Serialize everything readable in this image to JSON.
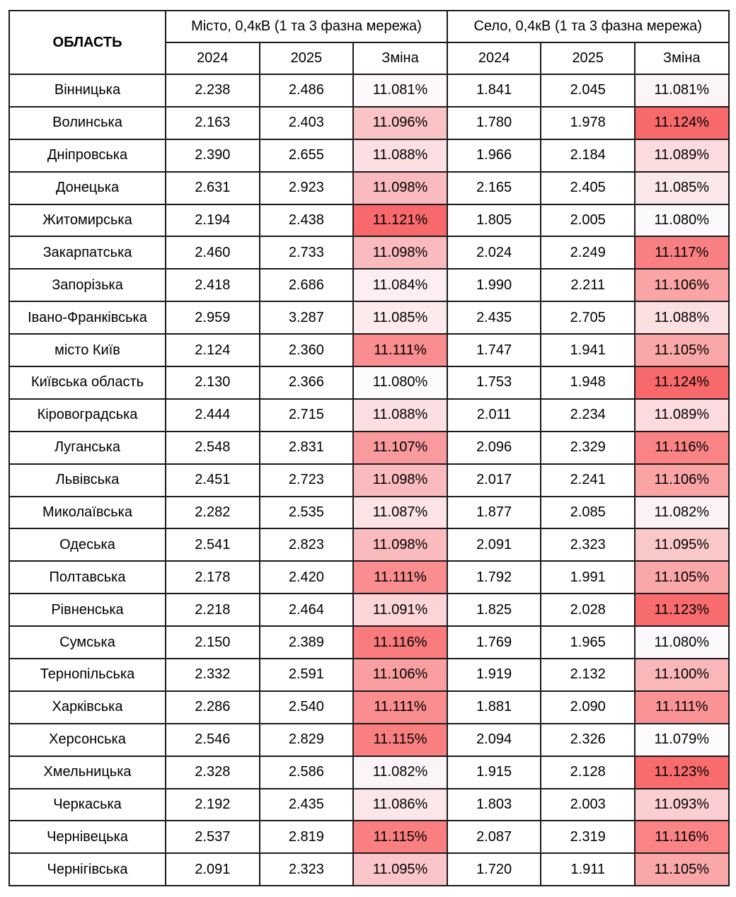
{
  "header": {
    "region": "ОБЛАСТЬ",
    "city_group": "Місто, 0,4кВ (1 та 3 фазна мережа)",
    "village_group": "Село, 0,4кВ (1 та 3 фазна мережа)",
    "col_2024": "2024",
    "col_2025": "2025",
    "col_change": "Зміна"
  },
  "colors": {
    "scale_low": "#FCFCFF",
    "scale_high": "#F8696B",
    "border": "#1a1a1a"
  },
  "rows": [
    {
      "region": "Вінницька",
      "city_2024": "2.238",
      "city_2025": "2.486",
      "city_change": "11.081%",
      "village_2024": "1.841",
      "village_2025": "2.045",
      "village_change": "11.081%"
    },
    {
      "region": "Волинська",
      "city_2024": "2.163",
      "city_2025": "2.403",
      "city_change": "11.096%",
      "village_2024": "1.780",
      "village_2025": "1.978",
      "village_change": "11.124%"
    },
    {
      "region": "Дніпровська",
      "city_2024": "2.390",
      "city_2025": "2.655",
      "city_change": "11.088%",
      "village_2024": "1.966",
      "village_2025": "2.184",
      "village_change": "11.089%"
    },
    {
      "region": "Донецька",
      "city_2024": "2.631",
      "city_2025": "2.923",
      "city_change": "11.098%",
      "village_2024": "2.165",
      "village_2025": "2.405",
      "village_change": "11.085%"
    },
    {
      "region": "Житомирська",
      "city_2024": "2.194",
      "city_2025": "2.438",
      "city_change": "11.121%",
      "village_2024": "1.805",
      "village_2025": "2.005",
      "village_change": "11.080%"
    },
    {
      "region": "Закарпатська",
      "city_2024": "2.460",
      "city_2025": "2.733",
      "city_change": "11.098%",
      "village_2024": "2.024",
      "village_2025": "2.249",
      "village_change": "11.117%"
    },
    {
      "region": "Запорізька",
      "city_2024": "2.418",
      "city_2025": "2.686",
      "city_change": "11.084%",
      "village_2024": "1.990",
      "village_2025": "2.211",
      "village_change": "11.106%"
    },
    {
      "region": "Івано-Франківська",
      "city_2024": "2.959",
      "city_2025": "3.287",
      "city_change": "11.085%",
      "village_2024": "2.435",
      "village_2025": "2.705",
      "village_change": "11.088%"
    },
    {
      "region": "місто Київ",
      "city_2024": "2.124",
      "city_2025": "2.360",
      "city_change": "11.111%",
      "village_2024": "1.747",
      "village_2025": "1.941",
      "village_change": "11.105%"
    },
    {
      "region": "Київська область",
      "city_2024": "2.130",
      "city_2025": "2.366",
      "city_change": "11.080%",
      "village_2024": "1.753",
      "village_2025": "1.948",
      "village_change": "11.124%"
    },
    {
      "region": "Кіровоградська",
      "city_2024": "2.444",
      "city_2025": "2.715",
      "city_change": "11.088%",
      "village_2024": "2.011",
      "village_2025": "2.234",
      "village_change": "11.089%"
    },
    {
      "region": "Луганська",
      "city_2024": "2.548",
      "city_2025": "2.831",
      "city_change": "11.107%",
      "village_2024": "2.096",
      "village_2025": "2.329",
      "village_change": "11.116%"
    },
    {
      "region": "Львівська",
      "city_2024": "2.451",
      "city_2025": "2.723",
      "city_change": "11.098%",
      "village_2024": "2.017",
      "village_2025": "2.241",
      "village_change": "11.106%"
    },
    {
      "region": "Миколаївська",
      "city_2024": "2.282",
      "city_2025": "2.535",
      "city_change": "11.087%",
      "village_2024": "1.877",
      "village_2025": "2.085",
      "village_change": "11.082%"
    },
    {
      "region": "Одеська",
      "city_2024": "2.541",
      "city_2025": "2.823",
      "city_change": "11.098%",
      "village_2024": "2.091",
      "village_2025": "2.323",
      "village_change": "11.095%"
    },
    {
      "region": "Полтавська",
      "city_2024": "2.178",
      "city_2025": "2.420",
      "city_change": "11.111%",
      "village_2024": "1.792",
      "village_2025": "1.991",
      "village_change": "11.105%"
    },
    {
      "region": "Рівненська",
      "city_2024": "2.218",
      "city_2025": "2.464",
      "city_change": "11.091%",
      "village_2024": "1.825",
      "village_2025": "2.028",
      "village_change": "11.123%"
    },
    {
      "region": "Сумська",
      "city_2024": "2.150",
      "city_2025": "2.389",
      "city_change": "11.116%",
      "village_2024": "1.769",
      "village_2025": "1.965",
      "village_change": "11.080%"
    },
    {
      "region": "Тернопільська",
      "city_2024": "2.332",
      "city_2025": "2.591",
      "city_change": "11.106%",
      "village_2024": "1.919",
      "village_2025": "2.132",
      "village_change": "11.100%"
    },
    {
      "region": "Харківська",
      "city_2024": "2.286",
      "city_2025": "2.540",
      "city_change": "11.111%",
      "village_2024": "1.881",
      "village_2025": "2.090",
      "village_change": "11.111%"
    },
    {
      "region": "Херсонська",
      "city_2024": "2.546",
      "city_2025": "2.829",
      "city_change": "11.115%",
      "village_2024": "2.094",
      "village_2025": "2.326",
      "village_change": "11.079%"
    },
    {
      "region": "Хмельницька",
      "city_2024": "2.328",
      "city_2025": "2.586",
      "city_change": "11.082%",
      "village_2024": "1.915",
      "village_2025": "2.128",
      "village_change": "11.123%"
    },
    {
      "region": "Черкаська",
      "city_2024": "2.192",
      "city_2025": "2.435",
      "city_change": "11.086%",
      "village_2024": "1.803",
      "village_2025": "2.003",
      "village_change": "11.093%"
    },
    {
      "region": "Чернівецька",
      "city_2024": "2.537",
      "city_2025": "2.819",
      "city_change": "11.115%",
      "village_2024": "2.087",
      "village_2025": "2.319",
      "village_change": "11.116%"
    },
    {
      "region": "Чернігівська",
      "city_2024": "2.091",
      "city_2025": "2.323",
      "city_change": "11.095%",
      "village_2024": "1.720",
      "village_2025": "1.911",
      "village_change": "11.105%"
    }
  ]
}
